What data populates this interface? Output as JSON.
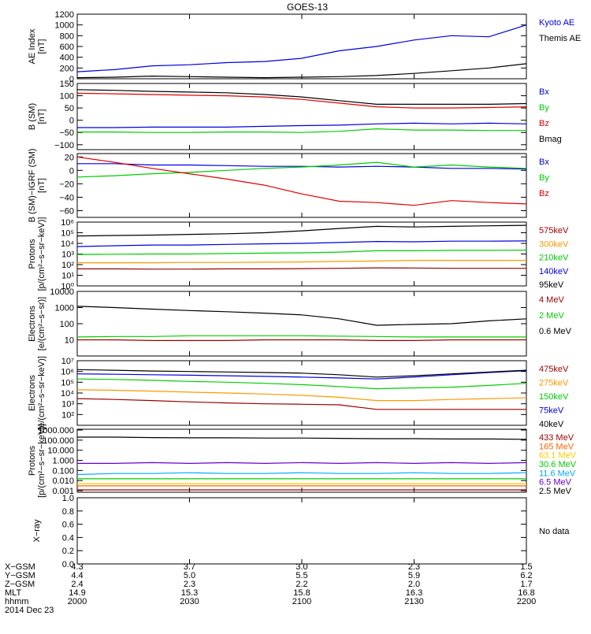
{
  "title": "GOES-13",
  "panels": [
    {
      "id": "ae",
      "ylabel": [
        "AE Index",
        "[nT]"
      ],
      "scale": "linear",
      "ylim": [
        0,
        1200
      ],
      "ticks": [
        0,
        200,
        400,
        600,
        800,
        1000,
        1200
      ],
      "tick_labels": [
        "0",
        "200",
        "400",
        "600",
        "800",
        "1000",
        "1200"
      ],
      "legend": [
        {
          "text": "Kyoto AE",
          "color": "#0000dd"
        },
        {
          "text": "Themis AE",
          "color": "#000000"
        }
      ]
    },
    {
      "id": "bsm",
      "ylabel": [
        "B (SM)",
        "[nT]"
      ],
      "scale": "linear",
      "ylim": [
        -120,
        150
      ],
      "ticks": [
        -100,
        -50,
        0,
        50,
        100,
        150
      ],
      "tick_labels": [
        "−100",
        "−50",
        "0",
        "50",
        "100",
        "150"
      ],
      "legend": [
        {
          "text": "Bx",
          "color": "#0000dd"
        },
        {
          "text": "By",
          "color": "#00cc00"
        },
        {
          "text": "Bz",
          "color": "#dd0000"
        },
        {
          "text": "Bmag",
          "color": "#000000"
        }
      ]
    },
    {
      "id": "bigrf",
      "ylabel": [
        "B (SM)−IGRF (SM)",
        "[nT]"
      ],
      "scale": "linear",
      "ylim": [
        -70,
        25
      ],
      "ticks": [
        -60,
        -40,
        -20,
        0,
        20
      ],
      "tick_labels": [
        "−60",
        "−40",
        "−20",
        "0",
        "20"
      ],
      "legend": [
        {
          "text": "Bx",
          "color": "#0000dd"
        },
        {
          "text": "By",
          "color": "#00cc00"
        },
        {
          "text": "Bz",
          "color": "#dd0000"
        }
      ]
    },
    {
      "id": "prot_low",
      "ylabel": [
        "Protons",
        "[p/(cm²−s−sr−keV)]"
      ],
      "scale": "log",
      "ylim": [
        1,
        1000000
      ],
      "ticks": [
        1,
        10,
        100,
        1000,
        10000,
        100000,
        1000000
      ],
      "tick_labels": [
        "10⁰",
        "10¹",
        "10²",
        "10³",
        "10⁴",
        "10⁵",
        "10⁶"
      ],
      "legend": [
        {
          "text": "575keV",
          "color": "#990000"
        },
        {
          "text": "300keV",
          "color": "#ff9900"
        },
        {
          "text": "210keV",
          "color": "#00cc00"
        },
        {
          "text": "140keV",
          "color": "#0000dd"
        },
        {
          "text": "95keV",
          "color": "#000000"
        }
      ]
    },
    {
      "id": "elec_mev",
      "ylabel": [
        "Electrons",
        "[e/(cm²−s−sr)]"
      ],
      "scale": "log",
      "ylim": [
        1,
        10000
      ],
      "ticks": [
        10,
        100,
        1000,
        10000
      ],
      "tick_labels": [
        "10",
        "100",
        "1000",
        "10000"
      ],
      "legend": [
        {
          "text": "4 MeV",
          "color": "#990000"
        },
        {
          "text": "2 MeV",
          "color": "#00cc00"
        },
        {
          "text": "0.6 MeV",
          "color": "#000000"
        }
      ]
    },
    {
      "id": "elec_kev",
      "ylabel": [
        "Electrons",
        "[e/(cm²−s−sr−keV)]"
      ],
      "scale": "log",
      "ylim": [
        10,
        10000000
      ],
      "ticks": [
        100,
        1000,
        10000,
        100000,
        1000000,
        10000000
      ],
      "tick_labels": [
        "10²",
        "10³",
        "10⁴",
        "10⁵",
        "10⁶",
        "10⁷"
      ],
      "legend": [
        {
          "text": "475keV",
          "color": "#990000"
        },
        {
          "text": "275keV",
          "color": "#ff9900"
        },
        {
          "text": "150keV",
          "color": "#00cc00"
        },
        {
          "text": "75keV",
          "color": "#0000dd"
        },
        {
          "text": "40keV",
          "color": "#000000"
        }
      ]
    },
    {
      "id": "prot_high",
      "ylabel": [
        "Protons",
        "[p/(cm²−s−sr−keV)]"
      ],
      "scale": "log",
      "ylim": [
        0.0007,
        1200
      ],
      "ticks": [
        0.001,
        0.01,
        0.1,
        1,
        10,
        100,
        1000
      ],
      "tick_labels": [
        "0.001",
        "0.010",
        "0.100",
        "1.000",
        "10.000",
        "100.000",
        "1000.000"
      ],
      "legend": [
        {
          "text": "433 MeV",
          "color": "#990000"
        },
        {
          "text": "165 MeV",
          "color": "#ff6600"
        },
        {
          "text": "63.1 MeV",
          "color": "#ffcc00"
        },
        {
          "text": "30.6 MeV",
          "color": "#00cc00"
        },
        {
          "text": "11.6 MeV",
          "color": "#00aaff"
        },
        {
          "text": "6.5 MeV",
          "color": "#6600cc"
        },
        {
          "text": "2.5 MeV",
          "color": "#000000"
        }
      ]
    },
    {
      "id": "xray",
      "ylabel": [
        "X−ray"
      ],
      "scale": "linear",
      "ylim": [
        0,
        1
      ],
      "ticks": [
        0,
        0.2,
        0.4,
        0.6,
        0.8,
        1.0
      ],
      "tick_labels": [
        "0.0",
        "0.2",
        "0.4",
        "0.6",
        "0.8",
        "1.0"
      ],
      "legend": [
        {
          "text": "No data",
          "color": "#000000"
        }
      ]
    }
  ],
  "footer": {
    "rows": [
      {
        "label": "X−GSM",
        "values": [
          "4.3",
          "3.7",
          "3.0",
          "2.3",
          "1.5"
        ]
      },
      {
        "label": "Y−GSM",
        "values": [
          "4.4",
          "5.0",
          "5.5",
          "5.9",
          "6.2"
        ]
      },
      {
        "label": "Z−GSM",
        "values": [
          "2.4",
          "2.3",
          "2.2",
          "2.0",
          "1.7"
        ]
      },
      {
        "label": "MLT",
        "values": [
          "14.9",
          "15.3",
          "15.8",
          "16.3",
          "16.8"
        ]
      },
      {
        "label": "hhmm",
        "values": [
          "2000",
          "2030",
          "2100",
          "2130",
          "2200"
        ]
      }
    ],
    "date": "2014 Dec 23"
  },
  "chart_data": {
    "type": "line",
    "x_ticks": [
      "2000",
      "2030",
      "2100",
      "2130",
      "2200"
    ],
    "x": [
      0,
      10,
      20,
      30,
      40,
      50,
      60,
      70,
      80,
      90,
      100,
      110,
      120
    ],
    "x_unit": "minutes after 20:00 UT",
    "series": {
      "ae": [
        {
          "name": "Kyoto AE",
          "values": [
            130,
            170,
            240,
            260,
            300,
            320,
            380,
            520,
            600,
            720,
            800,
            780,
            1000
          ]
        },
        {
          "name": "Themis AE",
          "values": [
            20,
            30,
            50,
            40,
            30,
            20,
            30,
            40,
            60,
            100,
            150,
            200,
            280
          ]
        }
      ],
      "bsm": [
        {
          "name": "Bx",
          "values": [
            -30,
            -30,
            -28,
            -28,
            -28,
            -25,
            -22,
            -20,
            -15,
            -12,
            -15,
            -12,
            -15
          ]
        },
        {
          "name": "By",
          "values": [
            -48,
            -48,
            -50,
            -50,
            -48,
            -48,
            -50,
            -45,
            -35,
            -40,
            -40,
            -42,
            -42
          ]
        },
        {
          "name": "Bz",
          "values": [
            110,
            108,
            105,
            102,
            100,
            95,
            85,
            70,
            55,
            50,
            50,
            52,
            55
          ]
        },
        {
          "name": "Bmag",
          "values": [
            125,
            122,
            118,
            115,
            112,
            105,
            95,
            80,
            65,
            65,
            65,
            65,
            68
          ]
        }
      ],
      "bigrf": [
        {
          "name": "Bx",
          "values": [
            10,
            10,
            8,
            8,
            7,
            6,
            6,
            5,
            6,
            5,
            3,
            3,
            2
          ]
        },
        {
          "name": "By",
          "values": [
            -10,
            -8,
            -5,
            -3,
            0,
            3,
            5,
            8,
            12,
            5,
            8,
            5,
            3
          ]
        },
        {
          "name": "Bz",
          "values": [
            20,
            12,
            3,
            -5,
            -13,
            -22,
            -35,
            -46,
            -48,
            -52,
            -45,
            -48,
            -50
          ]
        }
      ],
      "prot_low": [
        {
          "name": "575keV",
          "values": [
            40,
            40,
            38,
            38,
            40,
            40,
            42,
            45,
            50,
            48,
            45,
            45,
            45
          ]
        },
        {
          "name": "300keV",
          "values": [
            150,
            150,
            150,
            160,
            160,
            170,
            180,
            200,
            220,
            250,
            250,
            250,
            250
          ]
        },
        {
          "name": "210keV",
          "values": [
            900,
            950,
            1000,
            1000,
            1100,
            1200,
            1300,
            1500,
            2000,
            2000,
            2200,
            2200,
            2300
          ]
        },
        {
          "name": "140keV",
          "values": [
            5000,
            6000,
            7000,
            7000,
            8000,
            9000,
            10000,
            12000,
            15000,
            14000,
            16000,
            16000,
            17000
          ]
        },
        {
          "name": "95keV",
          "values": [
            50000,
            55000,
            60000,
            70000,
            80000,
            100000,
            150000,
            250000,
            400000,
            350000,
            400000,
            450000,
            500000
          ]
        }
      ],
      "elec_mev": [
        {
          "name": "4 MeV",
          "values": [
            10,
            10,
            9,
            9,
            9,
            10,
            10,
            10,
            9,
            9,
            10,
            10,
            10
          ]
        },
        {
          "name": "2 MeV",
          "values": [
            15,
            16,
            16,
            18,
            18,
            18,
            18,
            17,
            16,
            15,
            15,
            15,
            15
          ]
        },
        {
          "name": "0.6 MeV",
          "values": [
            1200,
            1000,
            800,
            650,
            550,
            450,
            350,
            200,
            80,
            90,
            100,
            150,
            200
          ]
        }
      ],
      "elec_kev": [
        {
          "name": "475keV",
          "values": [
            3000,
            2500,
            2000,
            1500,
            1200,
            1000,
            900,
            800,
            300,
            300,
            300,
            300,
            300
          ]
        },
        {
          "name": "275keV",
          "values": [
            20000,
            18000,
            15000,
            12000,
            10000,
            8000,
            6000,
            4000,
            2000,
            2000,
            2500,
            3000,
            3500
          ]
        },
        {
          "name": "150keV",
          "values": [
            200000,
            180000,
            150000,
            120000,
            100000,
            80000,
            60000,
            40000,
            25000,
            30000,
            35000,
            50000,
            80000
          ]
        },
        {
          "name": "75keV",
          "values": [
            600000,
            550000,
            500000,
            450000,
            400000,
            350000,
            300000,
            250000,
            200000,
            300000,
            500000,
            800000,
            1200000
          ]
        },
        {
          "name": "40keV",
          "values": [
            1500000,
            1300000,
            1100000,
            1000000,
            900000,
            800000,
            700000,
            500000,
            300000,
            400000,
            600000,
            900000,
            1300000
          ]
        }
      ],
      "prot_high": [
        {
          "name": "433 MeV",
          "values": [
            0.0012,
            0.0012,
            0.0012,
            0.0012,
            0.0012,
            0.0012,
            0.0012,
            0.0012,
            0.0012,
            0.0012,
            0.0012,
            0.0012,
            0.0012
          ]
        },
        {
          "name": "165 MeV",
          "values": [
            0.003,
            0.003,
            0.003,
            0.003,
            0.003,
            0.003,
            0.003,
            0.003,
            0.003,
            0.003,
            0.003,
            0.003,
            0.003
          ]
        },
        {
          "name": "63.1 MeV",
          "values": [
            0.005,
            0.005,
            0.005,
            0.005,
            0.005,
            0.005,
            0.005,
            0.005,
            0.005,
            0.005,
            0.005,
            0.005,
            0.005
          ]
        },
        {
          "name": "30.6 MeV",
          "values": [
            0.015,
            0.015,
            0.015,
            0.015,
            0.015,
            0.015,
            0.015,
            0.015,
            0.015,
            0.015,
            0.015,
            0.015,
            0.015
          ]
        },
        {
          "name": "11.6 MeV",
          "values": [
            0.04,
            0.05,
            0.05,
            0.06,
            0.05,
            0.05,
            0.06,
            0.05,
            0.05,
            0.06,
            0.05,
            0.05,
            0.06
          ]
        },
        {
          "name": "6.5 MeV",
          "values": [
            0.5,
            0.5,
            0.6,
            0.5,
            0.6,
            0.5,
            0.6,
            0.5,
            0.6,
            0.5,
            0.6,
            0.5,
            0.6
          ]
        },
        {
          "name": "2.5 MeV",
          "values": [
            200,
            200,
            180,
            170,
            170,
            160,
            160,
            150,
            140,
            140,
            130,
            130,
            120
          ]
        }
      ],
      "xray": []
    }
  }
}
